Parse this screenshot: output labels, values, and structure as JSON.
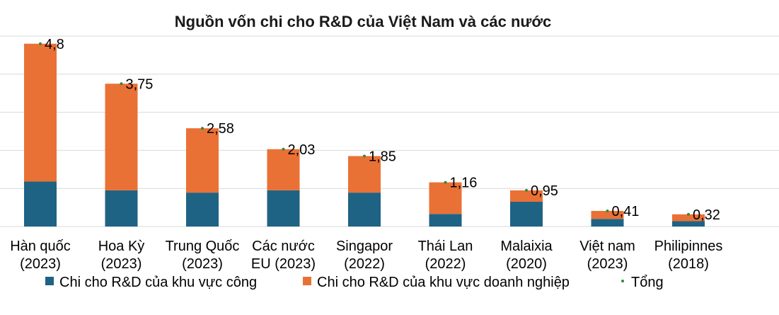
{
  "chart_data": {
    "type": "bar",
    "stacked": true,
    "title": "Nguồn vốn chi cho R&D của Việt Nam và các nước",
    "categories": [
      [
        "Hàn quốc",
        "(2023)"
      ],
      [
        "Hoa Kỳ",
        "(2023)"
      ],
      [
        "Trung Quốc",
        "(2023)"
      ],
      [
        "Các nước",
        "EU (2023)"
      ],
      [
        "Singapor",
        "(2022)"
      ],
      [
        "Thái Lan",
        "(2022)"
      ],
      [
        "Malaixia",
        "(2020)"
      ],
      [
        "Việt nam",
        "(2023)"
      ],
      [
        "Philipinnes",
        "(2018)"
      ]
    ],
    "series": [
      {
        "name": "Chi cho R&D của khu vực công",
        "color": "#1f6384",
        "values": [
          1.18,
          0.95,
          0.89,
          0.95,
          0.89,
          0.33,
          0.65,
          0.2,
          0.14
        ]
      },
      {
        "name": "Chi cho R&D của khu vực doanh nghiệp",
        "color": "#ea7135",
        "values": [
          3.62,
          2.8,
          1.69,
          1.08,
          0.96,
          0.83,
          0.3,
          0.21,
          0.18
        ]
      }
    ],
    "total": {
      "name": "Tổng",
      "color": "#2e8b3a",
      "values": [
        4.8,
        3.75,
        2.58,
        2.03,
        1.85,
        1.16,
        0.95,
        0.41,
        0.32
      ],
      "labels": [
        "4,8",
        "3,75",
        "2,58",
        "2,03",
        "1,85",
        "1,16",
        "0,95",
        "0,41",
        "0,32"
      ]
    },
    "ylim": [
      0,
      5
    ],
    "grid": true,
    "legend_position": "bottom"
  }
}
